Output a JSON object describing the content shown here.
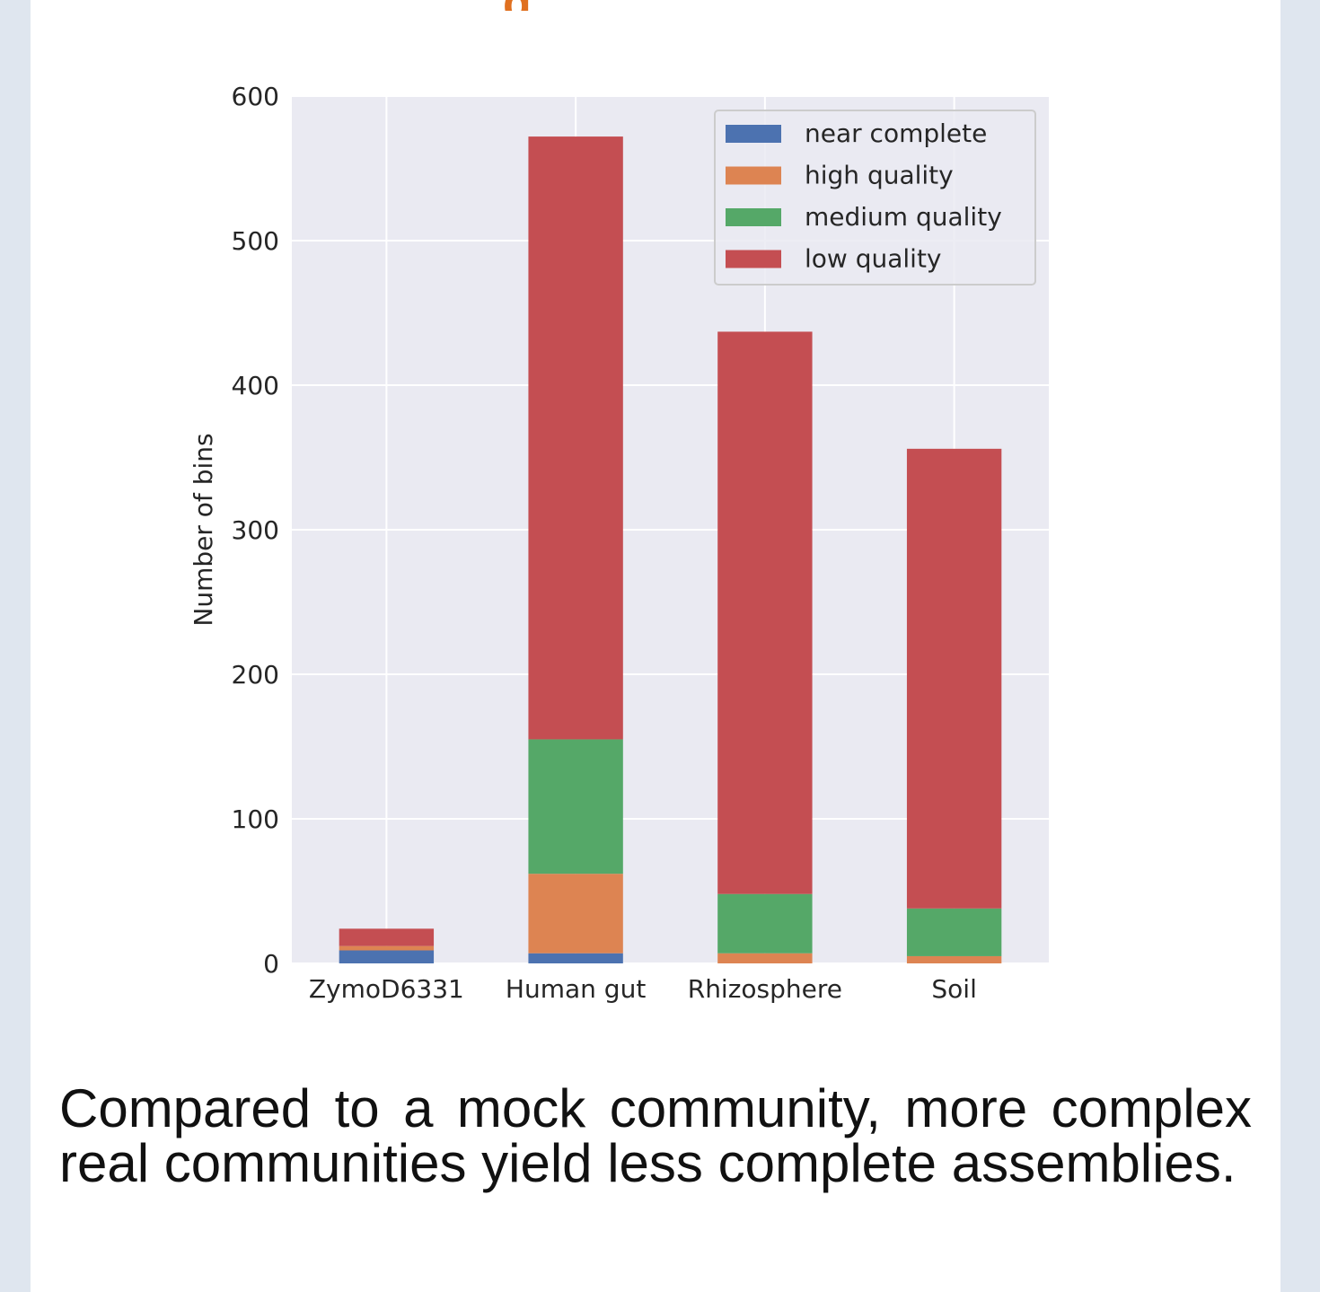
{
  "header": {
    "title_fragment": "g"
  },
  "chart_data": {
    "type": "bar",
    "stacked": true,
    "categories": [
      "ZymoD6331",
      "Human gut",
      "Rhizosphere",
      "Soil"
    ],
    "series": [
      {
        "name": "near complete",
        "color": "#4c72b0",
        "values": [
          9,
          7,
          0,
          0
        ]
      },
      {
        "name": "high quality",
        "color": "#dd8452",
        "values": [
          3,
          55,
          7,
          5
        ]
      },
      {
        "name": "medium quality",
        "color": "#55a868",
        "values": [
          0,
          93,
          41,
          33
        ]
      },
      {
        "name": "low quality",
        "color": "#c44e52",
        "values": [
          12,
          417,
          389,
          318
        ]
      }
    ],
    "ylabel": "Number of bins",
    "xlabel": "",
    "ylim": [
      0,
      600
    ],
    "yticks": [
      0,
      100,
      200,
      300,
      400,
      500,
      600
    ],
    "grid": true,
    "legend": "top-right",
    "background": "#eaeaf2"
  },
  "caption": "Compared to a mock community, more complex real communities yield less complete assemblies."
}
